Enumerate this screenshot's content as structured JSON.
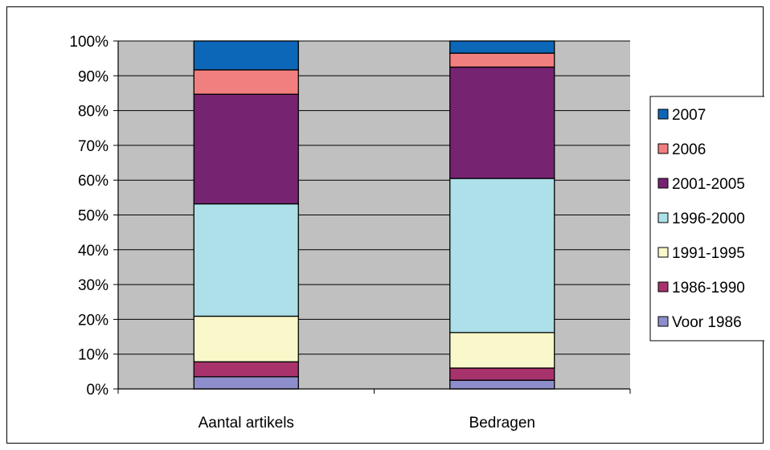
{
  "chart_data": {
    "type": "bar",
    "stacked": "percent",
    "categories": [
      "Aantal artikels",
      "Bedragen"
    ],
    "series": [
      {
        "name": "Voor 1986",
        "values": [
          3.5,
          2.5
        ],
        "color": "#8E8ECC"
      },
      {
        "name": "1986-1990",
        "values": [
          4.3,
          3.5
        ],
        "color": "#A8336C"
      },
      {
        "name": "1991-1995",
        "values": [
          13.1,
          10.2
        ],
        "color": "#F8F8CA"
      },
      {
        "name": "1996-2000",
        "values": [
          32.3,
          44.3
        ],
        "color": "#ADE0E8"
      },
      {
        "name": "2001-2005",
        "values": [
          31.5,
          32.0
        ],
        "color": "#762372"
      },
      {
        "name": "2006",
        "values": [
          7.0,
          4.0
        ],
        "color": "#F27F7F"
      },
      {
        "name": "2007",
        "values": [
          8.3,
          3.5
        ],
        "color": "#0D67B8"
      }
    ],
    "y_ticks": [
      "0%",
      "10%",
      "20%",
      "30%",
      "40%",
      "50%",
      "60%",
      "70%",
      "80%",
      "90%",
      "100%"
    ],
    "ylim": [
      0,
      100
    ],
    "grid": true,
    "plot_background": "#C0C0C0",
    "legend_position": "right",
    "title": "",
    "xlabel": "",
    "ylabel": ""
  }
}
